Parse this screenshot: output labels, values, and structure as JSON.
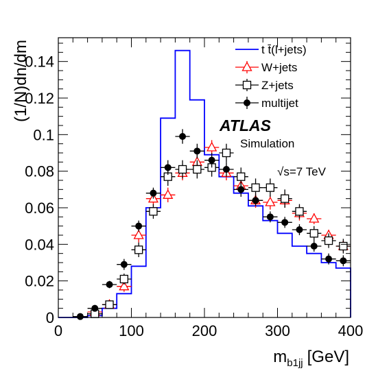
{
  "chart_data": {
    "type": "line",
    "xlabel": "m",
    "xlabel_sub": "b1jj",
    "xlabel_unit": "[GeV]",
    "ylabel": "(1/N)dn/dm",
    "xlim": [
      0,
      400
    ],
    "ylim": [
      0,
      0.153
    ],
    "x_ticks": [
      0,
      100,
      200,
      300,
      400
    ],
    "x_tick_labels": [
      "0",
      "100",
      "200",
      "300",
      "400"
    ],
    "y_ticks": [
      0,
      0.02,
      0.04,
      0.06,
      0.08,
      0.1,
      0.12,
      0.14
    ],
    "y_tick_labels": [
      "0",
      "0.02",
      "0.04",
      "0.06",
      "0.08",
      "0.1",
      "0.12",
      "0.14"
    ],
    "grid": false,
    "legend_position": "top-right",
    "bin_edges": [
      0,
      20,
      40,
      60,
      80,
      100,
      120,
      140,
      160,
      180,
      200,
      220,
      240,
      260,
      280,
      300,
      320,
      340,
      360,
      380,
      400
    ],
    "series": [
      {
        "name": "t t̄(l+jets)",
        "style": "histogram",
        "color": "#0000ff",
        "values": [
          0,
          0,
          0.001,
          0.005,
          0.013,
          0.028,
          0.06,
          0.109,
          0.146,
          0.119,
          0.089,
          0.077,
          0.068,
          0.061,
          0.053,
          0.046,
          0.039,
          0.035,
          0.03,
          0.027
        ]
      },
      {
        "name": "W+jets",
        "style": "open-triangle",
        "color": "#ff0000",
        "x": [
          50,
          70,
          90,
          110,
          130,
          150,
          170,
          190,
          210,
          230,
          250,
          270,
          290,
          310,
          330,
          350,
          370,
          390
        ],
        "values": [
          0.003,
          0.007,
          0.017,
          0.045,
          0.065,
          0.067,
          0.079,
          0.085,
          0.093,
          0.079,
          0.072,
          0.064,
          0.063,
          0.064,
          0.057,
          0.054,
          0.045,
          0.039
        ],
        "errors": [
          0.002,
          0.002,
          0.003,
          0.004,
          0.004,
          0.004,
          0.004,
          0.004,
          0.004,
          0.004,
          0.004,
          0.004,
          0.004,
          0.004,
          0.004,
          0.003,
          0.003,
          0.003
        ]
      },
      {
        "name": "Z+jets",
        "style": "open-square",
        "color": "#000000",
        "x": [
          50,
          70,
          90,
          110,
          130,
          150,
          170,
          190,
          210,
          230,
          250,
          270,
          290,
          310,
          330,
          350,
          370,
          390
        ],
        "values": [
          0.002,
          0.007,
          0.021,
          0.037,
          0.058,
          0.077,
          0.081,
          0.081,
          0.082,
          0.09,
          0.077,
          0.071,
          0.071,
          0.065,
          0.058,
          0.046,
          0.042,
          0.039
        ],
        "errors": [
          0.001,
          0.002,
          0.003,
          0.004,
          0.004,
          0.005,
          0.005,
          0.005,
          0.005,
          0.005,
          0.005,
          0.005,
          0.005,
          0.005,
          0.004,
          0.004,
          0.004,
          0.004
        ]
      },
      {
        "name": "multijet",
        "style": "filled-circle",
        "color": "#000000",
        "x": [
          30,
          50,
          70,
          90,
          110,
          130,
          150,
          170,
          190,
          210,
          230,
          250,
          270,
          290,
          310,
          330,
          350,
          370,
          390
        ],
        "values": [
          0.0005,
          0.005,
          0.018,
          0.029,
          0.05,
          0.068,
          0.082,
          0.099,
          0.091,
          0.086,
          0.081,
          0.07,
          0.064,
          0.055,
          0.052,
          0.048,
          0.039,
          0.032,
          0.031
        ],
        "errors": [
          0.001,
          0.001,
          0.002,
          0.003,
          0.003,
          0.003,
          0.004,
          0.004,
          0.004,
          0.004,
          0.004,
          0.004,
          0.003,
          0.003,
          0.003,
          0.003,
          0.003,
          0.003,
          0.003
        ]
      }
    ]
  },
  "annotations": {
    "experiment": "ATLAS",
    "label": "Simulation",
    "energy": "√s=7 TeV"
  }
}
